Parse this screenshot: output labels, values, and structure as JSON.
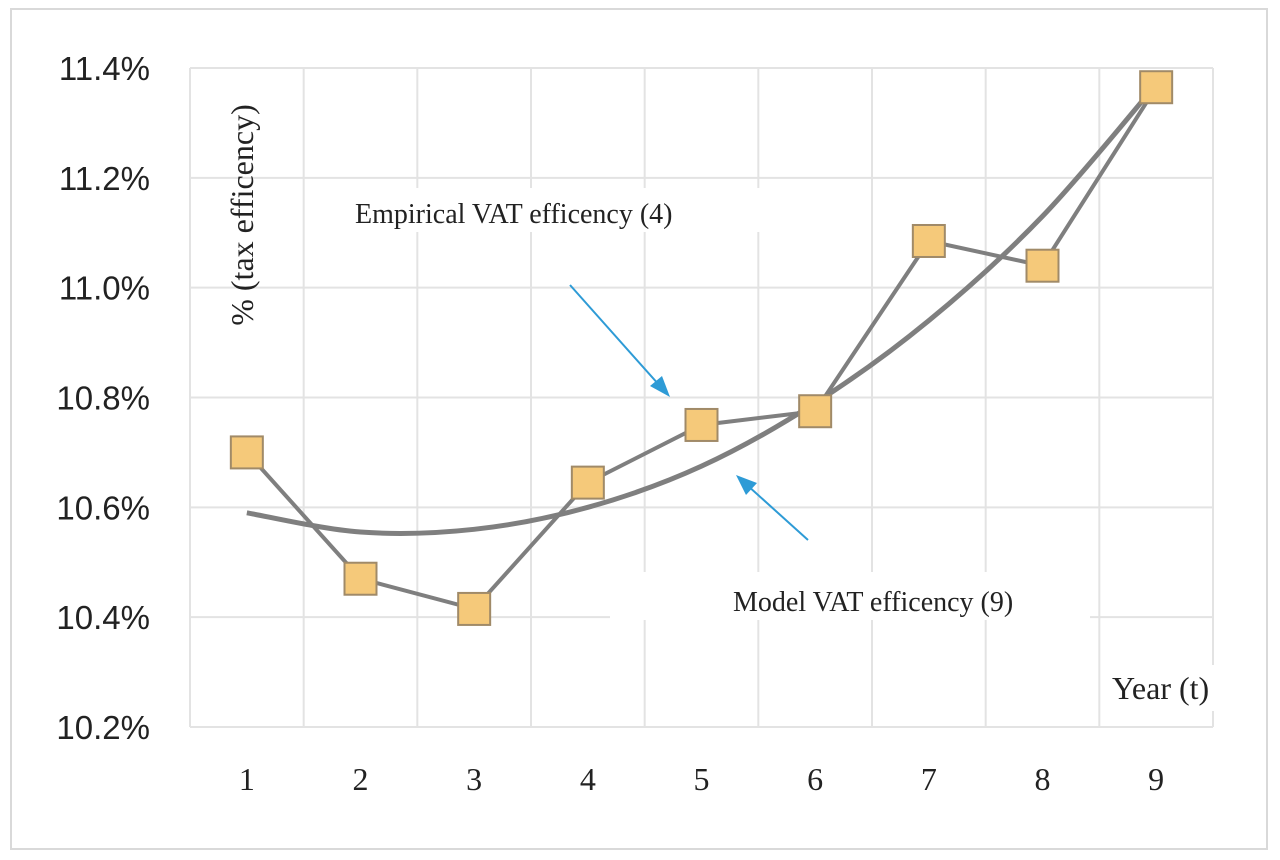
{
  "chart_data": {
    "type": "line",
    "ylabel": "% (tax efficency)",
    "xlabel": "Year (t)",
    "categories": [
      "1",
      "2",
      "3",
      "4",
      "5",
      "6",
      "7",
      "8",
      "9"
    ],
    "y_ticks": [
      "10.2%",
      "10.4%",
      "10.6%",
      "10.8%",
      "11.0%",
      "11.2%",
      "11.4%"
    ],
    "ylim": [
      10.2,
      11.4
    ],
    "grid": true,
    "series": [
      {
        "name": "Empirical VAT efficency (4)",
        "values": [
          10.7,
          10.47,
          10.415,
          10.645,
          10.75,
          10.775,
          11.085,
          11.04,
          11.365
        ],
        "marker": "square",
        "color": "#7f7f7f",
        "marker_fill": "#f5c97a"
      },
      {
        "name": "Model VAT efficency (9)",
        "values": [
          10.59,
          10.555,
          10.56,
          10.6,
          10.675,
          10.79,
          10.94,
          11.13,
          11.37
        ],
        "style": "smooth trend",
        "color": "#7f7f7f"
      }
    ],
    "annotations": [
      {
        "text": "Empirical VAT efficency (4)",
        "arrow_color": "#2e9bd6"
      },
      {
        "text": "Model VAT efficency (9)",
        "arrow_color": "#2e9bd6"
      }
    ]
  }
}
